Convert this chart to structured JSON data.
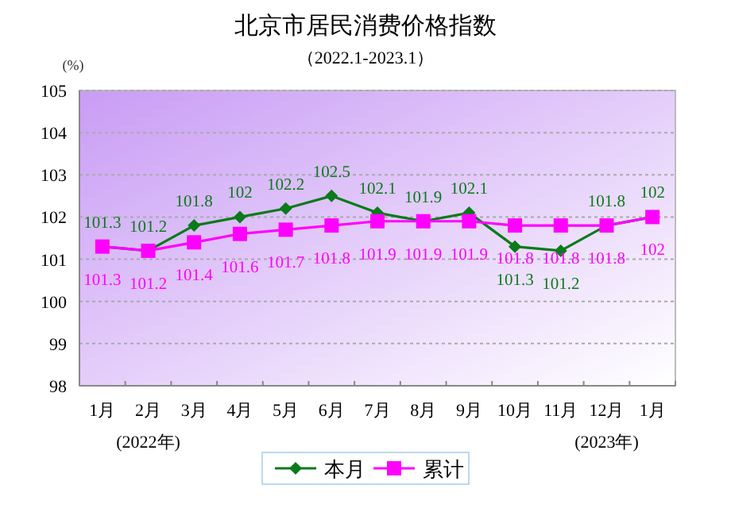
{
  "chart_data": {
    "type": "line",
    "title": "北京市居民消费价格指数",
    "subtitle": "（2022.1-2023.1）",
    "ylabel": "(%)",
    "categories": [
      "1月",
      "2月",
      "3月",
      "4月",
      "5月",
      "6月",
      "7月",
      "8月",
      "9月",
      "10月",
      "11月",
      "12月",
      "1月"
    ],
    "series": [
      {
        "name": "本月",
        "color": "#0a7a1a",
        "marker": "diamond",
        "values": [
          101.3,
          101.2,
          101.8,
          102,
          102.2,
          102.5,
          102.1,
          101.9,
          102.1,
          101.3,
          101.2,
          101.8,
          102
        ]
      },
      {
        "name": "累计",
        "color": "#ff00ff",
        "marker": "square",
        "values": [
          101.3,
          101.2,
          101.4,
          101.6,
          101.7,
          101.8,
          101.9,
          101.9,
          101.9,
          101.8,
          101.8,
          101.8,
          102
        ]
      }
    ],
    "ylim": [
      98,
      105
    ],
    "yticks": [
      98,
      99,
      100,
      101,
      102,
      103,
      104,
      105
    ],
    "grid": "y",
    "legend": "bottom",
    "data_labels": true,
    "line_style": "solid",
    "annotations": [
      "(2022年)",
      "(2023年)"
    ]
  }
}
